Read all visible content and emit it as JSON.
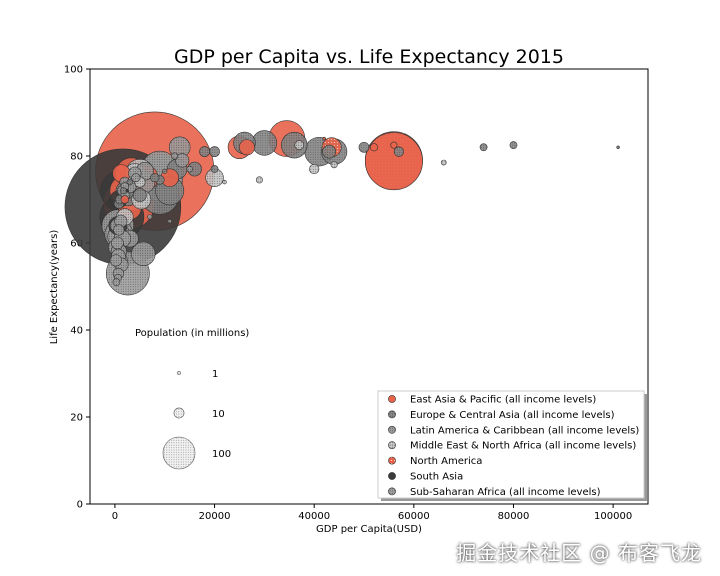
{
  "chart_data": {
    "type": "scatter",
    "title": "GDP per Capita vs. Life Expectancy 2015",
    "xlabel": "GDP per Capita(USD)",
    "ylabel": "Life Expectancy(years)",
    "xlim": [
      -5000,
      107000
    ],
    "ylim": [
      0,
      100
    ],
    "xticks": [
      0,
      20000,
      40000,
      60000,
      80000,
      100000
    ],
    "yticks": [
      0,
      20,
      40,
      60,
      80,
      100
    ],
    "size_legend": {
      "title": "Population (in millions)",
      "entries": [
        {
          "label": "1",
          "population": 1
        },
        {
          "label": "10",
          "population": 10
        },
        {
          "label": "100",
          "population": 100
        }
      ]
    },
    "series": [
      {
        "name": "East Asia & Pacific (all income levels)",
        "color": "#e8634a",
        "hatch": "none",
        "points": [
          [
            8000,
            76.5,
            1371
          ],
          [
            3300,
            76,
            95
          ],
          [
            1300,
            76,
            30
          ],
          [
            2800,
            69,
            255
          ],
          [
            11000,
            75,
            31
          ],
          [
            34500,
            84,
            127
          ],
          [
            25000,
            82,
            51
          ],
          [
            26500,
            82,
            23
          ],
          [
            52000,
            82,
            5.5
          ],
          [
            56000,
            78.8,
            320
          ],
          [
            56000,
            82.5,
            4
          ],
          [
            42000,
            84,
            0.7
          ],
          [
            6000,
            75,
            68
          ],
          [
            2200,
            72,
            100
          ],
          [
            2000,
            70,
            6
          ],
          [
            3000,
            68,
            50
          ]
        ]
      },
      {
        "name": "Europe & Central Asia (all income levels)",
        "color": "#878787",
        "hatch": "dense",
        "points": [
          [
            41000,
            81,
            81
          ],
          [
            36000,
            82.5,
            65
          ],
          [
            44000,
            81,
            64
          ],
          [
            30000,
            83,
            60
          ],
          [
            26000,
            83,
            46
          ],
          [
            43000,
            81,
            17
          ],
          [
            50000,
            82,
            10
          ],
          [
            57000,
            81,
            9
          ],
          [
            74000,
            82,
            5
          ],
          [
            80000,
            82.5,
            5
          ],
          [
            101000,
            82,
            0.6
          ],
          [
            9000,
            71,
            144
          ],
          [
            11000,
            72,
            78
          ],
          [
            12500,
            77,
            38
          ],
          [
            18000,
            81,
            10
          ],
          [
            20000,
            81,
            10
          ],
          [
            16000,
            77,
            19
          ],
          [
            20000,
            77,
            5
          ],
          [
            8000,
            75,
            7
          ],
          [
            10000,
            76.5,
            2
          ],
          [
            5000,
            71,
            17
          ],
          [
            9000,
            74.5,
            8
          ],
          [
            2500,
            71,
            45
          ],
          [
            2000,
            72,
            31
          ],
          [
            1000,
            70,
            8
          ],
          [
            3000,
            74,
            3
          ],
          [
            1700,
            72,
            4
          ],
          [
            800,
            69,
            9
          ]
        ]
      },
      {
        "name": "Latin America & Caribbean (all income levels)",
        "color": "#9e9e9e",
        "hatch": "dense",
        "points": [
          [
            9000,
            75,
            207
          ],
          [
            9000,
            77,
            127
          ],
          [
            5800,
            74,
            48
          ],
          [
            13000,
            82,
            43
          ],
          [
            13500,
            79,
            18
          ],
          [
            6000,
            76.5,
            31
          ],
          [
            4000,
            76,
            16
          ],
          [
            3000,
            73,
            16
          ],
          [
            800,
            63,
            11
          ],
          [
            2000,
            74,
            10
          ],
          [
            4200,
            75,
            7
          ],
          [
            2100,
            71,
            8
          ],
          [
            2000,
            73,
            6
          ],
          [
            15000,
            77,
            3.4
          ],
          [
            12000,
            80,
            4
          ],
          [
            1500,
            72,
            10
          ]
        ]
      },
      {
        "name": "Middle East & North Africa (all income levels)",
        "color": "#c8c8c8",
        "hatch": "dense",
        "points": [
          [
            3600,
            71,
            91
          ],
          [
            5000,
            76,
            79
          ],
          [
            5300,
            70,
            36
          ],
          [
            20000,
            75,
            31
          ],
          [
            4000,
            76,
            39
          ],
          [
            37000,
            82.5,
            8
          ],
          [
            66000,
            78.5,
            2.5
          ],
          [
            44000,
            78,
            4
          ],
          [
            40000,
            77,
            9
          ],
          [
            29000,
            74.5,
            4
          ],
          [
            22000,
            74,
            1.4
          ],
          [
            2000,
            66,
            27
          ],
          [
            5000,
            74,
            11
          ]
        ]
      },
      {
        "name": "North America",
        "color": "#e8634a",
        "hatch": "sparse",
        "points": [
          [
            56000,
            79,
            321
          ],
          [
            43500,
            82,
            36
          ]
        ]
      },
      {
        "name": "South Asia",
        "color": "#3a3a3a",
        "hatch": "none",
        "points": [
          [
            1600,
            68.3,
            1311
          ],
          [
            1200,
            72,
            161
          ],
          [
            1400,
            66,
            189
          ],
          [
            700,
            70,
            29
          ],
          [
            600,
            64,
            33
          ],
          [
            2500,
            72,
            0.4
          ]
        ]
      },
      {
        "name": "Sub-Saharan Africa (all income levels)",
        "color": "#a0a0a0",
        "hatch": "dense",
        "points": [
          [
            2600,
            53,
            182
          ],
          [
            600,
            64,
            99
          ],
          [
            5700,
            57.5,
            55
          ],
          [
            800,
            62,
            77
          ],
          [
            900,
            61.5,
            53
          ],
          [
            300,
            59,
            25
          ],
          [
            800,
            58,
            24
          ],
          [
            1000,
            56,
            22
          ],
          [
            3000,
            61,
            28
          ],
          [
            1500,
            61,
            27
          ],
          [
            1200,
            65,
            15
          ],
          [
            400,
            64,
            17
          ],
          [
            500,
            60,
            14
          ],
          [
            7000,
            66,
            2
          ],
          [
            11000,
            65,
            1.3
          ],
          [
            700,
            57,
            19
          ],
          [
            200,
            56,
            13
          ],
          [
            600,
            52,
            5
          ],
          [
            1300,
            55,
            18
          ],
          [
            700,
            53,
            11
          ],
          [
            300,
            51,
            4.9
          ]
        ]
      }
    ]
  }
}
